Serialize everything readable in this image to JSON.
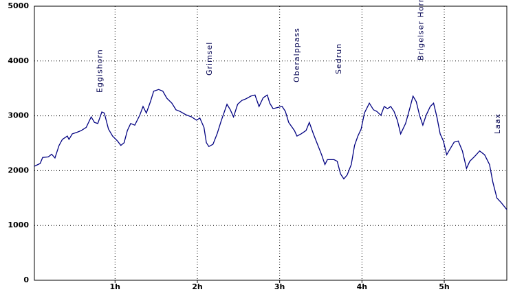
{
  "chart_data": {
    "type": "line",
    "x": [
      0.02,
      0.09,
      0.12,
      0.19,
      0.23,
      0.27,
      0.32,
      0.36,
      0.42,
      0.44,
      0.48,
      0.54,
      0.59,
      0.65,
      0.71,
      0.75,
      0.79,
      0.84,
      0.87,
      0.92,
      0.97,
      1.03,
      1.07,
      1.11,
      1.15,
      1.19,
      1.24,
      1.3,
      1.34,
      1.38,
      1.43,
      1.47,
      1.53,
      1.58,
      1.63,
      1.69,
      1.74,
      1.79,
      1.86,
      1.93,
      1.99,
      2.03,
      2.08,
      2.11,
      2.14,
      2.19,
      2.24,
      2.29,
      2.36,
      2.4,
      2.44,
      2.49,
      2.54,
      2.59,
      2.65,
      2.7,
      2.75,
      2.8,
      2.85,
      2.88,
      2.92,
      2.97,
      3.03,
      3.07,
      3.11,
      3.18,
      3.21,
      3.26,
      3.32,
      3.36,
      3.41,
      3.46,
      3.51,
      3.55,
      3.58,
      3.66,
      3.7,
      3.74,
      3.78,
      3.82,
      3.87,
      3.91,
      3.95,
      3.99,
      4.03,
      4.09,
      4.14,
      4.18,
      4.23,
      4.27,
      4.31,
      4.35,
      4.39,
      4.43,
      4.47,
      4.53,
      4.58,
      4.62,
      4.66,
      4.7,
      4.74,
      4.78,
      4.83,
      4.87,
      4.91,
      4.95,
      4.99,
      5.03,
      5.08,
      5.12,
      5.17,
      5.22,
      5.27,
      5.31,
      5.37,
      5.43,
      5.49,
      5.55,
      5.59,
      5.64,
      5.69,
      5.76
    ],
    "series": [
      {
        "color": "#000080",
        "values": [
          2080,
          2130,
          2240,
          2250,
          2300,
          2230,
          2460,
          2570,
          2630,
          2570,
          2670,
          2700,
          2730,
          2790,
          2980,
          2880,
          2860,
          3070,
          3050,
          2760,
          2630,
          2540,
          2460,
          2510,
          2730,
          2860,
          2830,
          3010,
          3170,
          3050,
          3260,
          3450,
          3480,
          3450,
          3320,
          3230,
          3110,
          3080,
          3020,
          2980,
          2920,
          2960,
          2790,
          2510,
          2440,
          2480,
          2670,
          2910,
          3210,
          3110,
          2980,
          3210,
          3280,
          3310,
          3360,
          3380,
          3170,
          3330,
          3380,
          3230,
          3130,
          3150,
          3170,
          3080,
          2880,
          2730,
          2630,
          2670,
          2730,
          2880,
          2670,
          2480,
          2290,
          2110,
          2200,
          2200,
          2170,
          1940,
          1850,
          1920,
          2110,
          2460,
          2630,
          2760,
          3050,
          3230,
          3110,
          3080,
          3010,
          3170,
          3130,
          3170,
          3080,
          2920,
          2670,
          2860,
          3130,
          3360,
          3260,
          3010,
          2830,
          3010,
          3170,
          3230,
          2980,
          2670,
          2540,
          2290,
          2420,
          2520,
          2540,
          2360,
          2040,
          2170,
          2260,
          2360,
          2290,
          2110,
          1790,
          1500,
          1420,
          1290
        ]
      }
    ],
    "xlim": [
      0.02,
      5.76
    ],
    "xticks": [
      {
        "value": 1,
        "label": "1h"
      },
      {
        "value": 2,
        "label": "2h"
      },
      {
        "value": 3,
        "label": "3h"
      },
      {
        "value": 4,
        "label": "4h"
      },
      {
        "value": 5,
        "label": "5h"
      }
    ],
    "ylim": [
      0,
      5000
    ],
    "yticks": [
      0,
      1000,
      2000,
      3000,
      4000,
      5000
    ],
    "grid": true,
    "annotations": [
      {
        "text": "Eggishorn",
        "x": 0.82
      },
      {
        "text": "Grimsel",
        "x": 2.15
      },
      {
        "text": "Oberalppass",
        "x": 3.21
      },
      {
        "text": "Sedrun",
        "x": 3.72
      },
      {
        "text": "Brigelser Horne",
        "x": 4.72
      },
      {
        "text": "Laax",
        "x": 5.65
      }
    ]
  }
}
